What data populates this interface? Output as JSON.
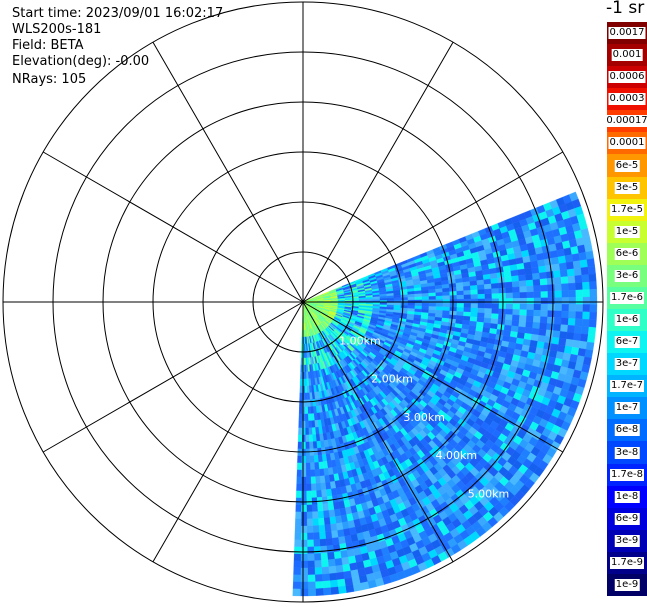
{
  "header": {
    "start_time": "Start time: 2023/09/01 16:02:17",
    "instrument": "WLS200s-181",
    "field": "Field: BETA",
    "elevation": "Elevation(deg): -0.00",
    "nrays": "NRays: 105"
  },
  "chart_data": {
    "type": "ppi",
    "field": "BETA",
    "instrument": "WLS200s-181",
    "start_time": "2023/09/01 16:02:17",
    "elevation_deg": -0.0,
    "n_rays": 105,
    "range_rings_km": [
      1,
      2,
      3,
      4,
      5
    ],
    "range_ring_labels": [
      "1.00km",
      "2.00km",
      "3.00km",
      "4.00km",
      "5.00km"
    ],
    "azimuth_spokes_deg": [
      0,
      30,
      60,
      90,
      120,
      150,
      180,
      210,
      240,
      270,
      300,
      330
    ],
    "sector_azimuth_deg": [
      68,
      182
    ],
    "max_range_km": 5.8,
    "colorbar": {
      "unit_label": "-1 sr",
      "labels": [
        "0.0017",
        "0.001",
        "0.0006",
        "0.0003",
        "0.00017",
        "0.0001",
        "6e-5",
        "3e-5",
        "1.7e-5",
        "1e-5",
        "6e-6",
        "3e-6",
        "1.7e-6",
        "1e-6",
        "6e-7",
        "3e-7",
        "1.7e-7",
        "1e-7",
        "6e-8",
        "3e-8",
        "1.7e-8",
        "1e-8",
        "6e-9",
        "3e-9",
        "1.7e-9",
        "1e-9"
      ],
      "colors": [
        "#800000",
        "#a50000",
        "#cc0000",
        "#f01000",
        "#ff3d00",
        "#ff6a00",
        "#ff9700",
        "#ffc400",
        "#f1f20e",
        "#c7ff30",
        "#a0ff57",
        "#79ff7e",
        "#57ffa0",
        "#30ffc7",
        "#0ef5f1",
        "#00d8ff",
        "#00b4ff",
        "#0090ff",
        "#006cff",
        "#0048ff",
        "#0024ff",
        "#0000ff",
        "#0000dd",
        "#0000b4",
        "#00008b",
        "#000066"
      ]
    }
  }
}
